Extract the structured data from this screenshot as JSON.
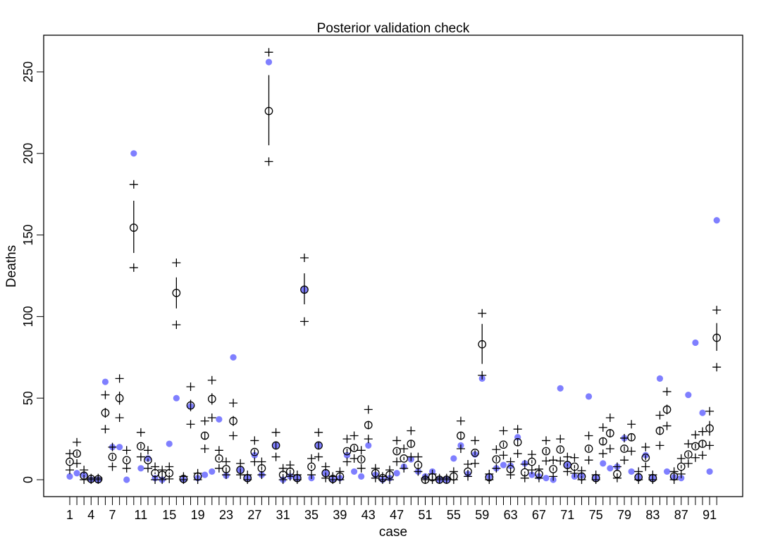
{
  "chart_data": {
    "type": "scatter",
    "title": "Posterior validation check",
    "xlabel": "case",
    "ylabel": "Deaths",
    "ylim": [
      0,
      250
    ],
    "yticks": [
      "0",
      "50",
      "100",
      "150",
      "200",
      "250"
    ],
    "ytick_values": [
      0,
      50,
      100,
      150,
      200,
      250
    ],
    "xlim": [
      1,
      92
    ],
    "xtick_labels": [
      "1",
      "4",
      "7",
      "11",
      "15",
      "19",
      "23",
      "27",
      "31",
      "35",
      "39",
      "43",
      "47",
      "51",
      "55",
      "59",
      "63",
      "67",
      "71",
      "75",
      "79",
      "83",
      "87",
      "91"
    ],
    "n_cases": 92,
    "colors": {
      "observed": "#7f7fff",
      "predicted": "#000000"
    },
    "observed": [
      2,
      4,
      3,
      0,
      0,
      60,
      20,
      20,
      0,
      200,
      7,
      13,
      1,
      0,
      22,
      50,
      0,
      45,
      1,
      3,
      5,
      37,
      2.5,
      75,
      6,
      1,
      15,
      3,
      256,
      21,
      0,
      2,
      1,
      116.5,
      1,
      21,
      4,
      0,
      1,
      15,
      5,
      2,
      21,
      3,
      0,
      1,
      4,
      8,
      12.5,
      5,
      2,
      5,
      0,
      0,
      13,
      21,
      3.5,
      15.5,
      62,
      2,
      7,
      9,
      8.5,
      26,
      10,
      3,
      2,
      1,
      0,
      56,
      9,
      2,
      2.5,
      51,
      1,
      10,
      7,
      8,
      25.5,
      5,
      1.5,
      15,
      1,
      62,
      5,
      1.5,
      1,
      52,
      84,
      41,
      5,
      159
    ],
    "mean": [
      11,
      16,
      2.5,
      0.5,
      0.3,
      41,
      14,
      50,
      12,
      154.5,
      20.5,
      12,
      4,
      3,
      4,
      114.5,
      0.5,
      45.5,
      2,
      27,
      49.5,
      13,
      6.5,
      36,
      6,
      1,
      17,
      7,
      226,
      21,
      3,
      5,
      1,
      116.5,
      8,
      21,
      4,
      0.5,
      2,
      17.5,
      19.5,
      12.5,
      33.5,
      4,
      1,
      3,
      17.5,
      13,
      22,
      9,
      0,
      1.5,
      0,
      0,
      2,
      27,
      5,
      16.5,
      83,
      1.5,
      12.5,
      21.5,
      6.5,
      23,
      4.5,
      11,
      3.5,
      17.5,
      6.5,
      18.5,
      9,
      8,
      2,
      19,
      1,
      23.5,
      28.5,
      3.5,
      19,
      26,
      1.5,
      13.5,
      1,
      30,
      43,
      2,
      8,
      15.5,
      20.5,
      22,
      31.5,
      87
    ],
    "mean_lo": [
      10,
      14.5,
      2,
      0.3,
      0.2,
      38,
      12.5,
      46,
      11,
      139,
      19,
      11,
      3.5,
      2.5,
      3.5,
      105,
      0.3,
      42,
      1.5,
      25,
      46,
      12,
      5.5,
      33,
      5,
      0.7,
      15.5,
      6,
      205,
      19,
      2.5,
      4,
      0.7,
      107.5,
      7,
      19,
      3.5,
      0.3,
      1.5,
      16,
      18,
      11,
      31,
      3.5,
      0.7,
      2.5,
      16,
      12,
      20,
      8,
      0,
      1,
      0,
      0,
      1.5,
      25,
      4,
      15,
      71,
      1,
      11,
      20,
      5.5,
      21,
      4,
      10,
      3,
      16,
      5.5,
      17,
      8,
      7,
      1.5,
      17.5,
      0.7,
      21.5,
      26,
      3,
      17.5,
      24,
      1,
      12,
      0.7,
      27.5,
      40,
      1.5,
      7,
      14,
      19,
      20,
      27,
      79
    ],
    "mean_hi": [
      12,
      17.5,
      3,
      0.7,
      0.4,
      44,
      15.5,
      54,
      13,
      171,
      22,
      13,
      4.5,
      3.5,
      4.5,
      124,
      0.7,
      49,
      2.5,
      29,
      53,
      14,
      7.5,
      39,
      7,
      1.3,
      18.5,
      8,
      248,
      23,
      3.5,
      6,
      1.3,
      126.5,
      9,
      23,
      4.5,
      0.7,
      2.5,
      19,
      21,
      14,
      36,
      4.5,
      1.3,
      3.5,
      19,
      14,
      24,
      10,
      0.3,
      2,
      0.3,
      0.3,
      2.5,
      29,
      6,
      18,
      95.5,
      2,
      14,
      23,
      7.5,
      25,
      5,
      12,
      4,
      19,
      7.5,
      20,
      10,
      9,
      2.5,
      20.5,
      1.3,
      25.5,
      31,
      4,
      20.5,
      28,
      2,
      15,
      1.3,
      32.5,
      46,
      2.5,
      9,
      17,
      22,
      24,
      36,
      96
    ],
    "pred_lo": [
      6,
      10,
      0,
      0,
      0,
      31,
      8,
      38,
      7,
      130,
      14,
      7,
      0,
      0,
      0.5,
      95,
      0,
      34,
      0,
      19,
      38,
      7,
      3,
      27,
      3,
      0,
      11,
      3,
      195,
      14,
      0,
      2,
      0,
      97,
      3,
      14,
      1,
      0,
      0,
      11,
      13,
      7,
      25,
      1,
      0,
      0,
      11,
      7,
      14,
      5,
      0,
      0,
      0,
      0,
      0,
      19,
      2,
      10,
      64,
      0,
      7,
      15,
      3,
      16,
      1,
      6,
      1,
      11.5,
      2,
      11.5,
      5,
      4,
      0,
      12,
      0,
      16,
      19,
      1,
      12,
      17.5,
      0,
      8,
      0,
      21,
      33,
      0,
      3.5,
      10,
      13.5,
      15,
      21,
      69
    ],
    "pred_hi": [
      16,
      23,
      6,
      1,
      1,
      52,
      20,
      62,
      18,
      181,
      29,
      18,
      8,
      6,
      8,
      133,
      2,
      57,
      4,
      36,
      61,
      18,
      11,
      47,
      10,
      3,
      24,
      11,
      262,
      29,
      7,
      9,
      3,
      136,
      13,
      29,
      8,
      2,
      5,
      25,
      27,
      18,
      43,
      7,
      2,
      6,
      24,
      19,
      30,
      14,
      1,
      3.5,
      1,
      1,
      5,
      36,
      9.5,
      24,
      102,
      3.5,
      18.5,
      30,
      11,
      31,
      9.5,
      15.5,
      6.5,
      24,
      12,
      25,
      14,
      13.5,
      5.5,
      27,
      3,
      32,
      38,
      8,
      25.5,
      34,
      5,
      20,
      3,
      39.5,
      54,
      5,
      13,
      22,
      27.5,
      29.5,
      42,
      104
    ]
  }
}
